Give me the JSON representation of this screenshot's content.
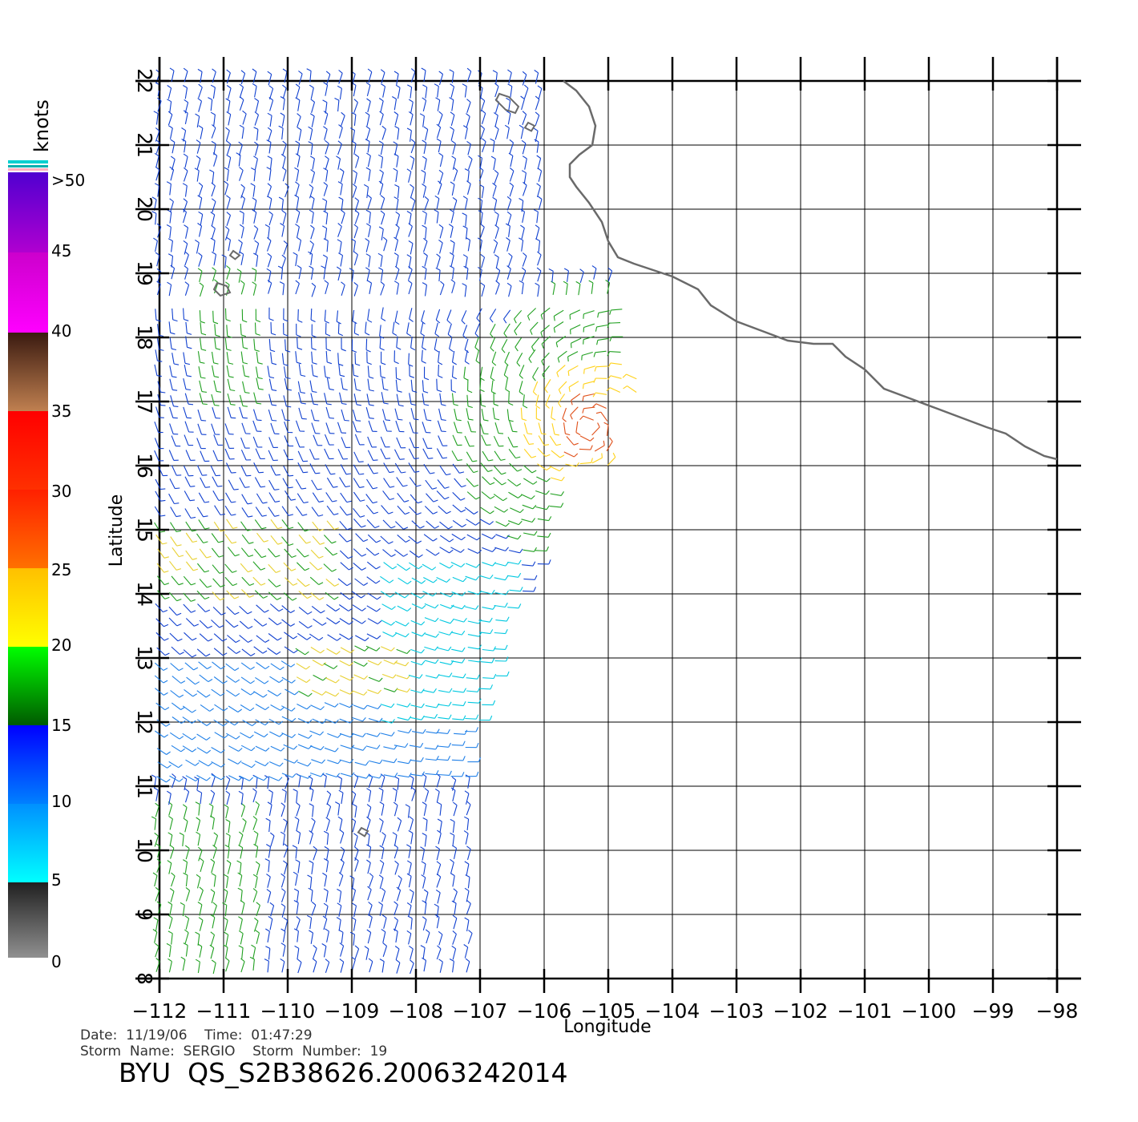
{
  "map": {
    "lon_range": [
      -112,
      -98
    ],
    "lat_range": [
      8,
      22
    ],
    "lon_ticks": [
      "−112",
      "−111",
      "−110",
      "−109",
      "−108",
      "−107",
      "−106",
      "−105",
      "−104",
      "−103",
      "−102",
      "−101",
      "−100",
      "−99",
      "−98"
    ],
    "lat_ticks": [
      "8",
      "9",
      "10",
      "11",
      "12",
      "13",
      "14",
      "15",
      "16",
      "17",
      "18",
      "19",
      "20",
      "21",
      "22"
    ],
    "xlabel": "Longitude",
    "ylabel": "Latitude",
    "coastline": [
      [
        -105.7,
        22.0
      ],
      [
        -105.5,
        21.85
      ],
      [
        -105.3,
        21.6
      ],
      [
        -105.2,
        21.3
      ],
      [
        -105.25,
        21.0
      ],
      [
        -105.45,
        20.85
      ],
      [
        -105.6,
        20.7
      ],
      [
        -105.6,
        20.5
      ],
      [
        -105.5,
        20.35
      ],
      [
        -105.3,
        20.1
      ],
      [
        -105.1,
        19.8
      ],
      [
        -105.0,
        19.5
      ],
      [
        -104.85,
        19.25
      ],
      [
        -104.6,
        19.15
      ],
      [
        -104.3,
        19.05
      ],
      [
        -104.0,
        18.95
      ],
      [
        -103.6,
        18.75
      ],
      [
        -103.4,
        18.5
      ],
      [
        -103.0,
        18.25
      ],
      [
        -102.6,
        18.1
      ],
      [
        -102.2,
        17.95
      ],
      [
        -101.8,
        17.9
      ],
      [
        -101.5,
        17.9
      ],
      [
        -101.3,
        17.7
      ],
      [
        -101.0,
        17.5
      ],
      [
        -100.7,
        17.2
      ],
      [
        -100.3,
        17.05
      ],
      [
        -99.9,
        16.9
      ],
      [
        -99.5,
        16.75
      ],
      [
        -99.1,
        16.6
      ],
      [
        -98.8,
        16.5
      ],
      [
        -98.5,
        16.3
      ],
      [
        -98.2,
        16.15
      ],
      [
        -98.0,
        16.1
      ]
    ],
    "islands": [
      {
        "name": "islas-marias",
        "points": [
          [
            -106.7,
            21.8
          ],
          [
            -106.55,
            21.75
          ],
          [
            -106.4,
            21.6
          ],
          [
            -106.45,
            21.5
          ],
          [
            -106.6,
            21.55
          ],
          [
            -106.75,
            21.7
          ]
        ]
      },
      {
        "name": "isla-isabel",
        "points": [
          [
            -106.25,
            21.35
          ],
          [
            -106.15,
            21.3
          ],
          [
            -106.2,
            21.22
          ],
          [
            -106.3,
            21.27
          ]
        ]
      },
      {
        "name": "socorro",
        "points": [
          [
            -111.1,
            18.85
          ],
          [
            -110.95,
            18.8
          ],
          [
            -110.9,
            18.7
          ],
          [
            -111.05,
            18.65
          ],
          [
            -111.15,
            18.75
          ]
        ]
      },
      {
        "name": "san-benedicto",
        "points": [
          [
            -110.85,
            19.35
          ],
          [
            -110.75,
            19.28
          ],
          [
            -110.82,
            19.22
          ],
          [
            -110.9,
            19.28
          ]
        ]
      },
      {
        "name": "clarion",
        "points": [
          [
            -108.85,
            10.35
          ],
          [
            -108.75,
            10.3
          ],
          [
            -108.8,
            10.22
          ],
          [
            -108.9,
            10.28
          ]
        ]
      }
    ]
  },
  "colorbar": {
    "unit": "knots",
    "labels": [
      ">50",
      "45",
      "40",
      "35",
      "30",
      "25",
      "20",
      "15",
      "10",
      "5",
      "0"
    ],
    "colors": {
      "gray": [
        "#808080",
        "#202020"
      ],
      "cyan_blue": [
        "#00ffff",
        "#0000ff"
      ],
      "green": [
        "#00ff00",
        "#005a00"
      ],
      "yellow_orange": [
        "#ffff00",
        "#ff8c00"
      ],
      "red": [
        "#ff3000",
        "#ff0000"
      ],
      "brown": [
        "#c08050",
        "#3a1a10"
      ],
      "magenta": [
        "#ff00ff",
        "#cc00cc"
      ],
      "purple": [
        "#b000d0",
        "#5000d0"
      ]
    }
  },
  "footer": {
    "line1": "Date:  11/19/06    Time:  01:47:29",
    "line2": "Storm  Name:  SERGIO    Storm  Number:  19",
    "product": "BYU  QS_S2B38626.20063242014"
  }
}
